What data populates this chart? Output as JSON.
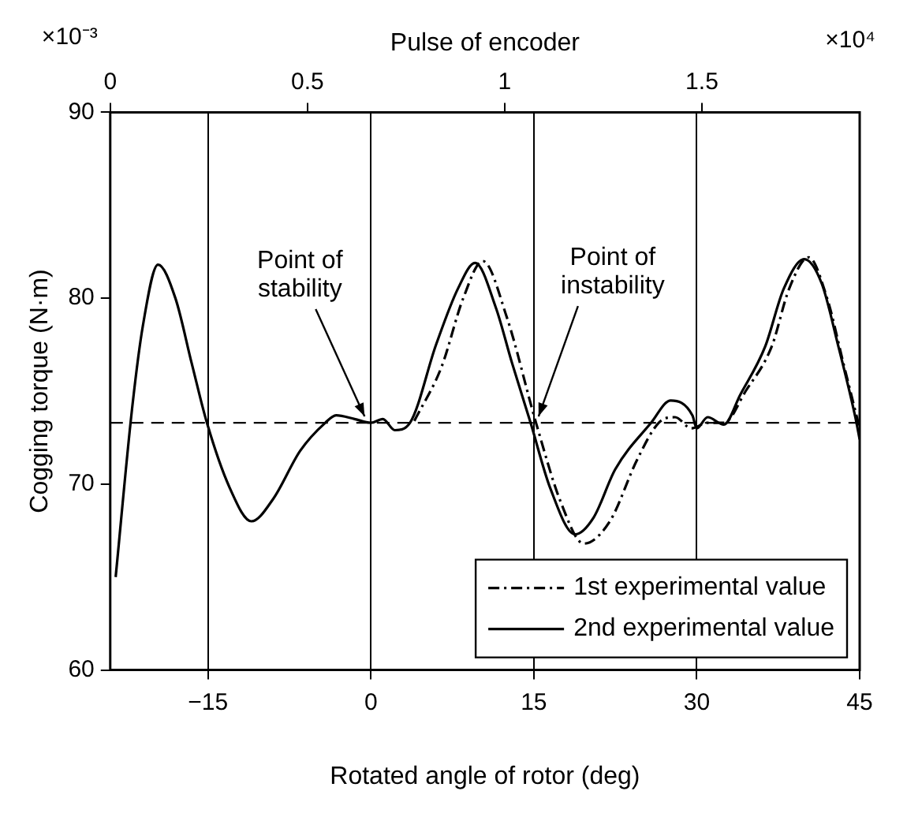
{
  "chart_data": {
    "type": "line",
    "xlabel": "Rotated angle of rotor (deg)",
    "ylabel": "Cogging torque (N·m)",
    "x2label": "Pulse of encoder",
    "xlim": [
      -24,
      45
    ],
    "xticks": [
      -15,
      0,
      15,
      30,
      45
    ],
    "x2lim": [
      0,
      1.9
    ],
    "x2ticks": [
      0,
      0.5,
      1,
      1.5
    ],
    "ylim": [
      60,
      90
    ],
    "yticks": [
      60,
      70,
      80,
      90
    ],
    "grid": "x",
    "legend": "bottom right",
    "marker": "none",
    "series": [
      {
        "name": "1st experimental value",
        "color": "#000000",
        "line_style": "dashed",
        "x": [
          4.0,
          6.5,
          8.5,
          10.3,
          12.5,
          15.2,
          17.5,
          19.6,
          22.0,
          24.5,
          26.5,
          28.0,
          29.5,
          31.0,
          32.5,
          34.5,
          36.9,
          38.5,
          40.3,
          42.0,
          43.5,
          45.0
        ],
        "values": [
          73.4,
          76.3,
          80.0,
          82.0,
          79.0,
          73.3,
          69.0,
          66.8,
          68.0,
          71.3,
          73.3,
          73.6,
          73.0,
          73.3,
          73.3,
          75.0,
          77.4,
          80.5,
          82.2,
          80.0,
          76.5,
          73.0
        ]
      },
      {
        "name": "2nd experimental value",
        "color": "#000000",
        "line_style": "solid",
        "x": [
          -23.5,
          -22.0,
          -21.0,
          -19.6,
          -18.0,
          -16.5,
          -15.1,
          -13.0,
          -11.0,
          -9.0,
          -6.5,
          -4.2,
          -3.2,
          -1.5,
          0.0,
          1.1,
          2.2,
          3.6,
          6.0,
          8.0,
          9.6,
          11.5,
          13.0,
          14.7,
          16.5,
          18.8,
          20.5,
          22.5,
          25.8,
          27.6,
          29.6,
          30.0,
          31.0,
          32.5,
          34.0,
          36.3,
          38.0,
          39.9,
          41.5,
          43.0,
          44.6,
          45.0
        ],
        "values": [
          65.0,
          74.0,
          78.5,
          81.8,
          80.0,
          76.5,
          73.3,
          69.8,
          68.0,
          69.2,
          71.8,
          73.3,
          73.7,
          73.5,
          73.3,
          73.5,
          72.9,
          73.3,
          77.5,
          80.5,
          81.9,
          79.5,
          76.5,
          73.3,
          69.8,
          67.3,
          68.2,
          70.8,
          73.3,
          74.5,
          73.7,
          73.0,
          73.6,
          73.2,
          74.8,
          77.4,
          80.5,
          82.1,
          80.8,
          77.5,
          73.6,
          72.4
        ]
      }
    ],
    "ref_lines": [
      {
        "axis": "y",
        "value": 73.3,
        "color": "#000000",
        "line_style": "dashed"
      }
    ],
    "annotations": [
      {
        "text": "Point of stability",
        "x": 0,
        "y": 73.3
      },
      {
        "text": "Point of instability",
        "x": 15,
        "y": 73.3
      },
      "×10⁻³",
      "×10⁴"
    ]
  }
}
